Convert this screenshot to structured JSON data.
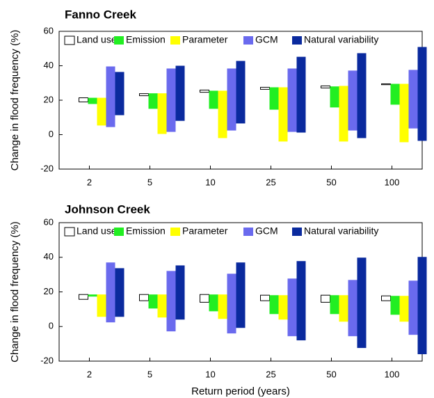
{
  "chart_data": [
    {
      "type": "range_bar",
      "title": "Fanno Creek",
      "ylabel": "Change in flood frequency (%)",
      "categories": [
        "2",
        "5",
        "10",
        "25",
        "50",
        "100"
      ],
      "ylim": [
        -20,
        60
      ],
      "yticks": [
        -20,
        0,
        20,
        40,
        60
      ],
      "grid": false,
      "series": [
        {
          "name": "Land use",
          "color": "#ffffff",
          "low": [
            19,
            22.6,
            24.6,
            26.3,
            27.1,
            29
          ],
          "high": [
            21.4,
            23.8,
            25.9,
            27.5,
            28.3,
            29.5
          ]
        },
        {
          "name": "Emission",
          "color": "#22ee22",
          "low": [
            17.8,
            15,
            15,
            14.5,
            15.8,
            17.4
          ],
          "high": [
            21.4,
            24,
            25.5,
            27.5,
            28,
            29.5
          ]
        },
        {
          "name": "Parameter",
          "color": "#ffff00",
          "low": [
            5.3,
            0.4,
            -2,
            -4,
            -4,
            -4.4
          ],
          "high": [
            21.4,
            24,
            25.5,
            27.5,
            28.3,
            29.5
          ]
        },
        {
          "name": "GCM",
          "color": "#6a6aee",
          "low": [
            4.4,
            1.6,
            2.4,
            1.6,
            2.4,
            3.6
          ],
          "high": [
            39.6,
            38.4,
            38.4,
            38.4,
            37.2,
            37.6
          ]
        },
        {
          "name": "Natural variability",
          "color": "#0a2a9e",
          "low": [
            11.3,
            8,
            6.5,
            1.2,
            -2,
            -3.6
          ],
          "high": [
            36.4,
            40,
            42.8,
            45.2,
            47.3,
            50.9
          ]
        }
      ]
    },
    {
      "type": "range_bar",
      "title": "Johnson Creek",
      "ylabel": "Change in flood frequency (%)",
      "xlabel": "Return period (years)",
      "categories": [
        "2",
        "5",
        "10",
        "25",
        "50",
        "100"
      ],
      "ylim": [
        -20,
        60
      ],
      "yticks": [
        -20,
        0,
        20,
        40,
        60
      ],
      "grid": false,
      "series": [
        {
          "name": "Land use",
          "color": "#ffffff",
          "low": [
            15.7,
            14.9,
            14,
            14.9,
            14,
            14.9
          ],
          "high": [
            18.5,
            18.5,
            18.5,
            18.1,
            18.1,
            17.7
          ]
        },
        {
          "name": "Emission",
          "color": "#22ee22",
          "low": [
            17.3,
            10.4,
            8.8,
            7.2,
            7.2,
            6.8
          ],
          "high": [
            18.5,
            18.5,
            18.5,
            18.1,
            18.1,
            17.7
          ]
        },
        {
          "name": "Parameter",
          "color": "#ffff00",
          "low": [
            5.6,
            5.2,
            4.4,
            4,
            2.8,
            2.8
          ],
          "high": [
            18.5,
            18.5,
            18.5,
            18.1,
            18.1,
            17.7
          ]
        },
        {
          "name": "GCM",
          "color": "#6a6aee",
          "low": [
            2.4,
            -2.8,
            -4,
            -5.6,
            -5.6,
            -4.8
          ],
          "high": [
            37,
            32.1,
            30.5,
            27.7,
            26.9,
            26.5
          ]
        },
        {
          "name": "Natural variability",
          "color": "#0a2a9e",
          "low": [
            5.6,
            4,
            -0.8,
            -8,
            -12.4,
            -16
          ],
          "high": [
            33.7,
            35.3,
            37,
            37.8,
            39.8,
            40.2
          ]
        }
      ]
    }
  ]
}
